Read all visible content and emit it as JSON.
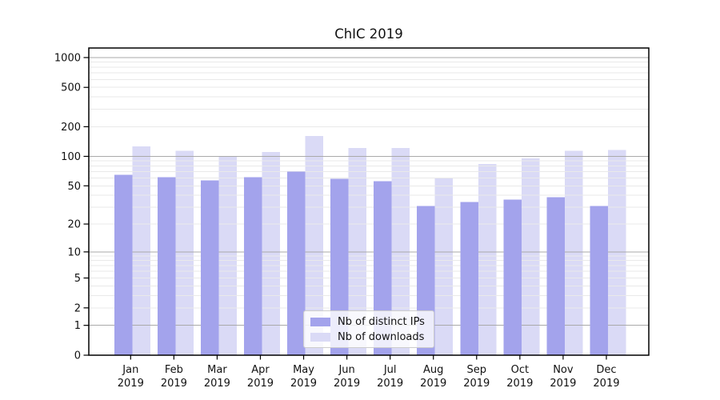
{
  "chart_data": {
    "type": "bar",
    "title": "ChIC 2019",
    "categories": [
      "Jan 2019",
      "Feb 2019",
      "Mar 2019",
      "Apr 2019",
      "May 2019",
      "Jun 2019",
      "Jul 2019",
      "Aug 2019",
      "Sep 2019",
      "Oct 2019",
      "Nov 2019",
      "Dec 2019"
    ],
    "series": [
      {
        "name": "Nb of distinct IPs",
        "color": "#a3a3ec",
        "values": [
          65,
          61,
          57,
          61,
          70,
          59,
          56,
          31,
          34,
          36,
          38,
          31
        ]
      },
      {
        "name": "Nb of downloads",
        "color": "#dadaf6",
        "values": [
          126,
          114,
          100,
          111,
          161,
          122,
          122,
          60,
          84,
          95,
          114,
          116
        ]
      }
    ],
    "xlabel": "",
    "ylabel": "",
    "y_scale": "log10(1+y)",
    "ylim": [
      0,
      1250
    ],
    "y_ticks": [
      0,
      1,
      2,
      5,
      10,
      20,
      50,
      100,
      200,
      500,
      1000
    ],
    "major_gridlines": [
      1,
      10,
      100,
      1000
    ],
    "minor_gridlines": [
      2,
      3,
      4,
      5,
      6,
      7,
      8,
      9,
      20,
      30,
      40,
      50,
      60,
      70,
      80,
      90,
      200,
      300,
      400,
      500,
      600,
      700,
      800,
      900
    ],
    "grid": true,
    "legend_position": "lower center"
  },
  "colors": {
    "background": "#ffffff",
    "frame": "#000000",
    "tick": "#000000",
    "text": "#111111",
    "major_grid": "#aaaaaa",
    "minor_grid": "#e9e9e9",
    "legend_border": "#cccccc"
  }
}
